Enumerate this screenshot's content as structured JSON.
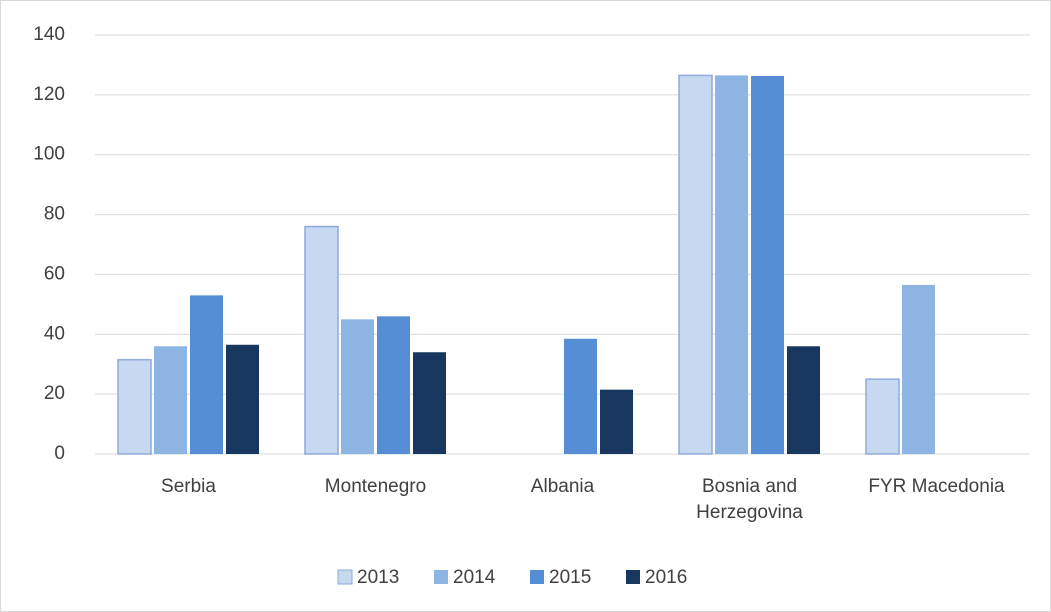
{
  "chart_data": {
    "type": "bar",
    "categories": [
      "Serbia",
      "Montenegro",
      "Albania",
      "Bosnia and Herzegovina",
      "FYR Macedonia"
    ],
    "series": [
      {
        "name": "2013",
        "color": "#c6d9f1",
        "values": [
          31.5,
          76,
          null,
          126.5,
          25
        ]
      },
      {
        "name": "2014",
        "color": "#8db4e3",
        "values": [
          36,
          45,
          null,
          126.5,
          56.5
        ]
      },
      {
        "name": "2015",
        "color": "#558ed5",
        "values": [
          53,
          46,
          38.5,
          126.3,
          null
        ]
      },
      {
        "name": "2016",
        "color": "#17375e",
        "values": [
          36.5,
          34,
          21.5,
          36,
          null
        ]
      }
    ],
    "ylim": [
      0,
      140
    ],
    "yticks": [
      0,
      20,
      40,
      60,
      80,
      100,
      120,
      140
    ],
    "grid": true,
    "legend": "bottom"
  }
}
